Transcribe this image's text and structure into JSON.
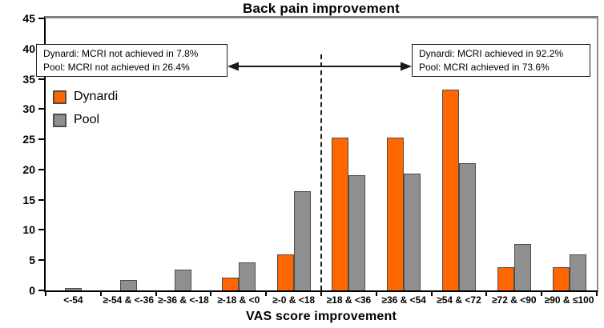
{
  "chart_data": {
    "type": "bar",
    "title": "Back pain improvement",
    "xlabel": "VAS score improvement",
    "ylabel": "",
    "ylim": [
      0,
      45
    ],
    "ytick_step": 5,
    "grid": false,
    "legend_position": "upper-left-inside",
    "categories": [
      "<-54",
      "≥-54 & <-36",
      "≥-36 & <-18",
      "≥-18 & <0",
      "≥-0 & <18",
      "≥18 & <36",
      "≥36 & <54",
      "≥54 & <72",
      "≥72 & <90",
      "≥90 & ≤100"
    ],
    "series": [
      {
        "name": "Dynardi",
        "color": "#FF6600",
        "values": [
          0,
          0,
          0,
          2.1,
          5.9,
          25.3,
          25.3,
          33.2,
          3.9,
          3.9
        ]
      },
      {
        "name": "Pool",
        "color": "#8F8F8F",
        "values": [
          0.4,
          1.7,
          3.4,
          4.7,
          16.4,
          19.1,
          19.3,
          21.0,
          7.7,
          5.9
        ]
      }
    ],
    "annotations": [
      {
        "side": "left",
        "lines": [
          "Dynardi: MCRI not achieved in 7.8%",
          "Pool: MCRI not achieved in 26.4%"
        ]
      },
      {
        "side": "right",
        "lines": [
          "Dynardi: MCRI achieved in 92.2%",
          "Pool: MCRI achieved in 73.6%"
        ]
      }
    ],
    "divider": {
      "style": "dashed-vertical",
      "after_category_index": 5
    },
    "arrow": {
      "style": "double-headed-horizontal",
      "connects": "left and right annotation boxes"
    }
  },
  "colors": {
    "dynardi": "#FF6600",
    "pool": "#8F8F8F",
    "bar_border": "#4d4d4d",
    "axis": "#000000",
    "frame": "#7f7f7f"
  }
}
